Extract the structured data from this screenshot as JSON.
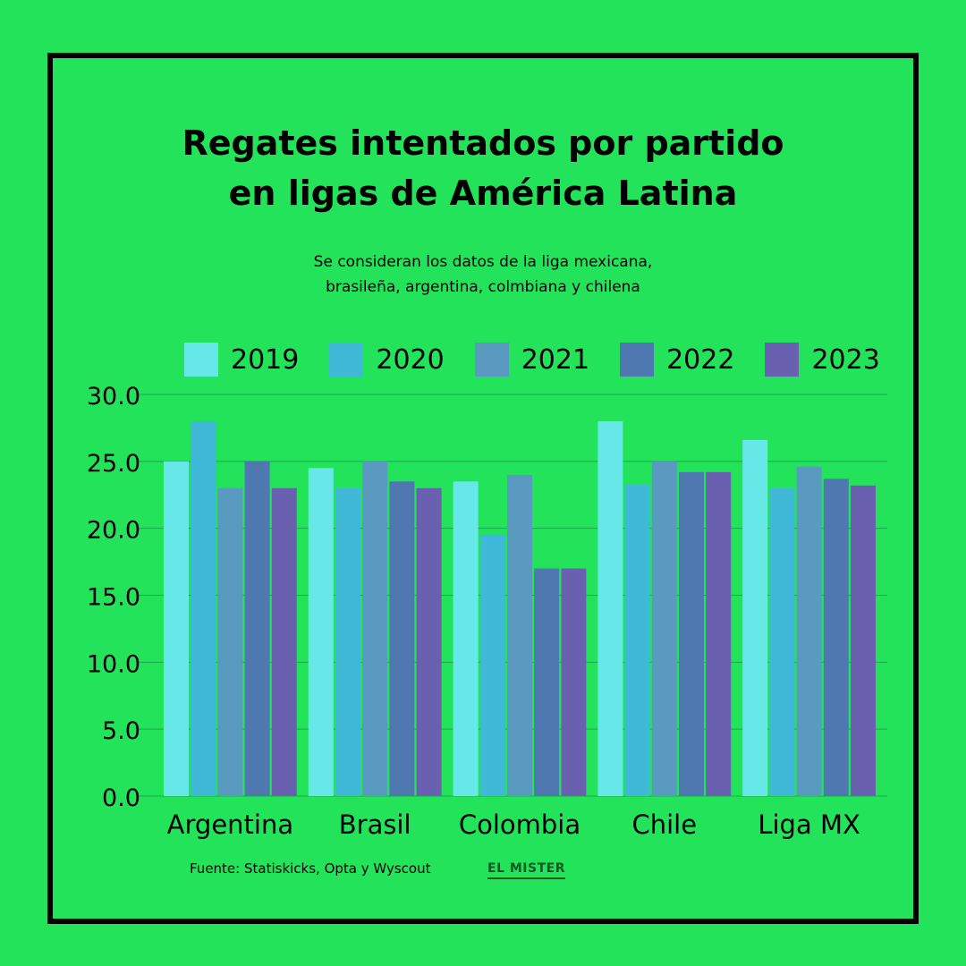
{
  "title_lines": [
    "Regates intentados por partido",
    "en ligas de América Latina"
  ],
  "subtitle_lines": [
    "Se consideran los datos de la liga mexicana,",
    "brasileña, argentina, colmbiana y chilena"
  ],
  "source": "Fuente: Statiskicks, Opta y Wyscout",
  "logo_text": "EL MISTER",
  "colors": {
    "background": "#23e35a",
    "frame": "#000000",
    "gridline": "#1aa84a",
    "series": [
      "#67e8e8",
      "#40b8d8",
      "#5a9ac0",
      "#5078b0",
      "#6a60b0"
    ]
  },
  "chart_data": {
    "type": "bar",
    "title": "Regates intentados por partido en ligas de América Latina",
    "categories": [
      "Argentina",
      "Brasil",
      "Colombia",
      "Chile",
      "Liga MX"
    ],
    "series": [
      {
        "name": "2019",
        "values": [
          25.0,
          24.5,
          23.5,
          28.0,
          26.6
        ]
      },
      {
        "name": "2020",
        "values": [
          28.0,
          23.0,
          19.5,
          23.3,
          23.0
        ]
      },
      {
        "name": "2021",
        "values": [
          23.0,
          25.0,
          24.0,
          25.0,
          24.6
        ]
      },
      {
        "name": "2022",
        "values": [
          25.0,
          23.5,
          17.0,
          24.2,
          23.7
        ]
      },
      {
        "name": "2023",
        "values": [
          23.0,
          23.0,
          17.0,
          24.2,
          23.2
        ]
      }
    ],
    "ylim": [
      0,
      30
    ],
    "yticks": [
      0,
      5,
      10,
      15,
      20,
      25,
      30
    ],
    "ytick_labels": [
      "0.0",
      "5.0",
      "10.0",
      "15.0",
      "20.0",
      "25.0",
      "30.0"
    ],
    "grid": true,
    "legend": "top"
  }
}
